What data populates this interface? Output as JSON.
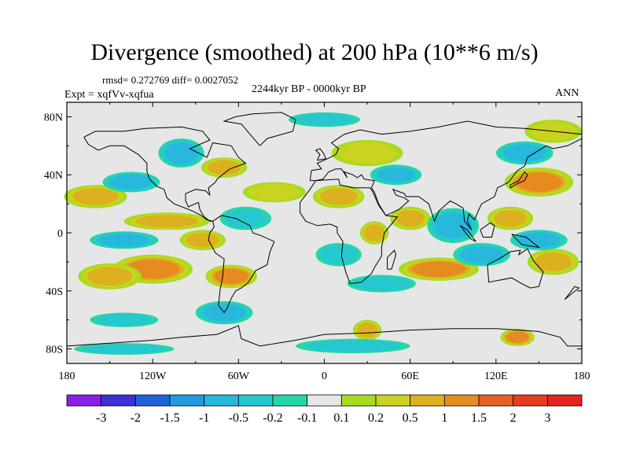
{
  "title": "Divergence (smoothed) at 200 hPa (10**6 m/s)",
  "stats": "rmsd= 0.272769 diff= 0.0027052",
  "experiment": "Expt = xqfVv-xqfua",
  "period": "2244kyr BP - 0000kyr BP",
  "season": "ANN",
  "chart_data": {
    "type": "heatmap",
    "title": "Divergence (smoothed) at 200 hPa (10**6 m/s)",
    "projection": "cylindrical-equidistant",
    "x_axis": {
      "range": [
        -180,
        180
      ],
      "ticks": [
        -180,
        -120,
        -60,
        0,
        60,
        120,
        180
      ],
      "tick_labels": [
        "180",
        "120W",
        "60W",
        "0",
        "60E",
        "120E",
        "180"
      ]
    },
    "y_axis": {
      "range": [
        -90,
        90
      ],
      "ticks": [
        80,
        40,
        0,
        -40,
        -80
      ],
      "tick_labels": [
        "80N",
        "40N",
        "0",
        "40S",
        "80S"
      ]
    },
    "colorbar": {
      "levels": [
        "-3",
        "-2",
        "-1.5",
        "-1",
        "-0.5",
        "-0.2",
        "-0.1",
        "0.1",
        "0.2",
        "0.5",
        "1",
        "1.5",
        "2",
        "3"
      ],
      "colors": [
        "#8a1fe6",
        "#3d2fd9",
        "#1f62db",
        "#1f9be0",
        "#27b8dc",
        "#26c8cf",
        "#25d6a8",
        "#e6e6e6",
        "#a6dc1f",
        "#c8d41f",
        "#dcb01f",
        "#e68b1f",
        "#e6601f",
        "#e63d1f",
        "#e6241f"
      ]
    },
    "field_blobs": [
      {
        "lon": -120,
        "lat": -25,
        "rlon": 28,
        "rlat": 10,
        "value": 1.2
      },
      {
        "lon": -150,
        "lat": -30,
        "rlon": 22,
        "rlat": 9,
        "value": 0.7
      },
      {
        "lon": -65,
        "lat": -30,
        "rlon": 18,
        "rlat": 8,
        "value": 1.0
      },
      {
        "lon": -85,
        "lat": -5,
        "rlon": 16,
        "rlat": 7,
        "value": 0.6
      },
      {
        "lon": -160,
        "lat": 25,
        "rlon": 22,
        "rlat": 8,
        "value": 0.5
      },
      {
        "lon": -70,
        "lat": 45,
        "rlon": 16,
        "rlat": 7,
        "value": 0.7
      },
      {
        "lon": -35,
        "lat": 28,
        "rlon": 22,
        "rlat": 7,
        "value": 0.4
      },
      {
        "lon": -110,
        "lat": 8,
        "rlon": 30,
        "rlat": 6,
        "value": 0.6
      },
      {
        "lon": 10,
        "lat": 25,
        "rlon": 18,
        "rlat": 8,
        "value": 0.5
      },
      {
        "lon": 35,
        "lat": 0,
        "rlon": 10,
        "rlat": 8,
        "value": 0.9
      },
      {
        "lon": 60,
        "lat": 10,
        "rlon": 14,
        "rlat": 8,
        "value": 0.8
      },
      {
        "lon": 30,
        "lat": 55,
        "rlon": 25,
        "rlat": 9,
        "value": 0.4
      },
      {
        "lon": 80,
        "lat": -25,
        "rlon": 28,
        "rlat": 8,
        "value": 1.0
      },
      {
        "lon": 150,
        "lat": 35,
        "rlon": 24,
        "rlat": 10,
        "value": 1.2
      },
      {
        "lon": 130,
        "lat": 10,
        "rlon": 16,
        "rlat": 8,
        "value": 0.7
      },
      {
        "lon": 160,
        "lat": -20,
        "rlon": 18,
        "rlat": 9,
        "value": 0.9
      },
      {
        "lon": 160,
        "lat": 70,
        "rlon": 20,
        "rlat": 8,
        "value": 0.4
      },
      {
        "lon": 30,
        "lat": -67,
        "rlon": 10,
        "rlat": 7,
        "value": 0.5
      },
      {
        "lon": 135,
        "lat": -72,
        "rlon": 12,
        "rlat": 6,
        "value": 1.0
      },
      {
        "lon": -140,
        "lat": -5,
        "rlon": 24,
        "rlat": 6,
        "value": -0.6
      },
      {
        "lon": -135,
        "lat": 35,
        "rlon": 20,
        "rlat": 7,
        "value": -0.5
      },
      {
        "lon": -100,
        "lat": 55,
        "rlon": 16,
        "rlat": 10,
        "value": -0.5
      },
      {
        "lon": -55,
        "lat": 10,
        "rlon": 18,
        "rlat": 8,
        "value": -0.4
      },
      {
        "lon": -70,
        "lat": -55,
        "rlon": 20,
        "rlat": 8,
        "value": -0.5
      },
      {
        "lon": 0,
        "lat": 78,
        "rlon": 25,
        "rlat": 5,
        "value": -0.4
      },
      {
        "lon": 50,
        "lat": 40,
        "rlon": 18,
        "rlat": 7,
        "value": -0.5
      },
      {
        "lon": 10,
        "lat": -15,
        "rlon": 16,
        "rlat": 8,
        "value": -0.4
      },
      {
        "lon": 90,
        "lat": 5,
        "rlon": 18,
        "rlat": 12,
        "value": -0.8
      },
      {
        "lon": 110,
        "lat": -15,
        "rlon": 20,
        "rlat": 8,
        "value": -0.7
      },
      {
        "lon": 150,
        "lat": -5,
        "rlon": 20,
        "rlat": 7,
        "value": -0.6
      },
      {
        "lon": 140,
        "lat": 55,
        "rlon": 20,
        "rlat": 8,
        "value": -0.5
      },
      {
        "lon": 40,
        "lat": -35,
        "rlon": 24,
        "rlat": 6,
        "value": -0.4
      },
      {
        "lon": -140,
        "lat": -60,
        "rlon": 24,
        "rlat": 5,
        "value": -0.3
      },
      {
        "lon": 20,
        "lat": -78,
        "rlon": 40,
        "rlat": 5,
        "value": -0.3
      },
      {
        "lon": -140,
        "lat": -80,
        "rlon": 35,
        "rlat": 4,
        "value": -0.3
      }
    ]
  }
}
